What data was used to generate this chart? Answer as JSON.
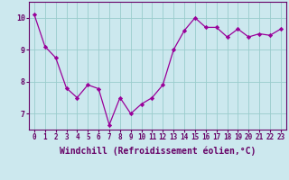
{
  "x": [
    0,
    1,
    2,
    3,
    4,
    5,
    6,
    7,
    8,
    9,
    10,
    11,
    12,
    13,
    14,
    15,
    16,
    17,
    18,
    19,
    20,
    21,
    22,
    23
  ],
  "y": [
    10.1,
    9.1,
    8.75,
    7.8,
    7.5,
    7.9,
    7.78,
    6.65,
    7.5,
    7.0,
    7.3,
    7.5,
    7.9,
    9.0,
    9.6,
    10.0,
    9.7,
    9.7,
    9.4,
    9.65,
    9.4,
    9.5,
    9.45,
    9.65
  ],
  "line_color": "#990099",
  "marker": "D",
  "markersize": 2.2,
  "linewidth": 0.9,
  "bg_color": "#cce8ee",
  "grid_color": "#99cccc",
  "xlabel": "Windchill (Refroidissement éolien,°C)",
  "ylim": [
    6.5,
    10.5
  ],
  "xlim": [
    -0.5,
    23.5
  ],
  "yticks": [
    7,
    8,
    9,
    10
  ],
  "xticks": [
    0,
    1,
    2,
    3,
    4,
    5,
    6,
    7,
    8,
    9,
    10,
    11,
    12,
    13,
    14,
    15,
    16,
    17,
    18,
    19,
    20,
    21,
    22,
    23
  ],
  "tick_labelsize": 5.5,
  "xlabel_fontsize": 7,
  "label_color": "#660066",
  "axis_color": "#660066",
  "spine_color": "#660066"
}
